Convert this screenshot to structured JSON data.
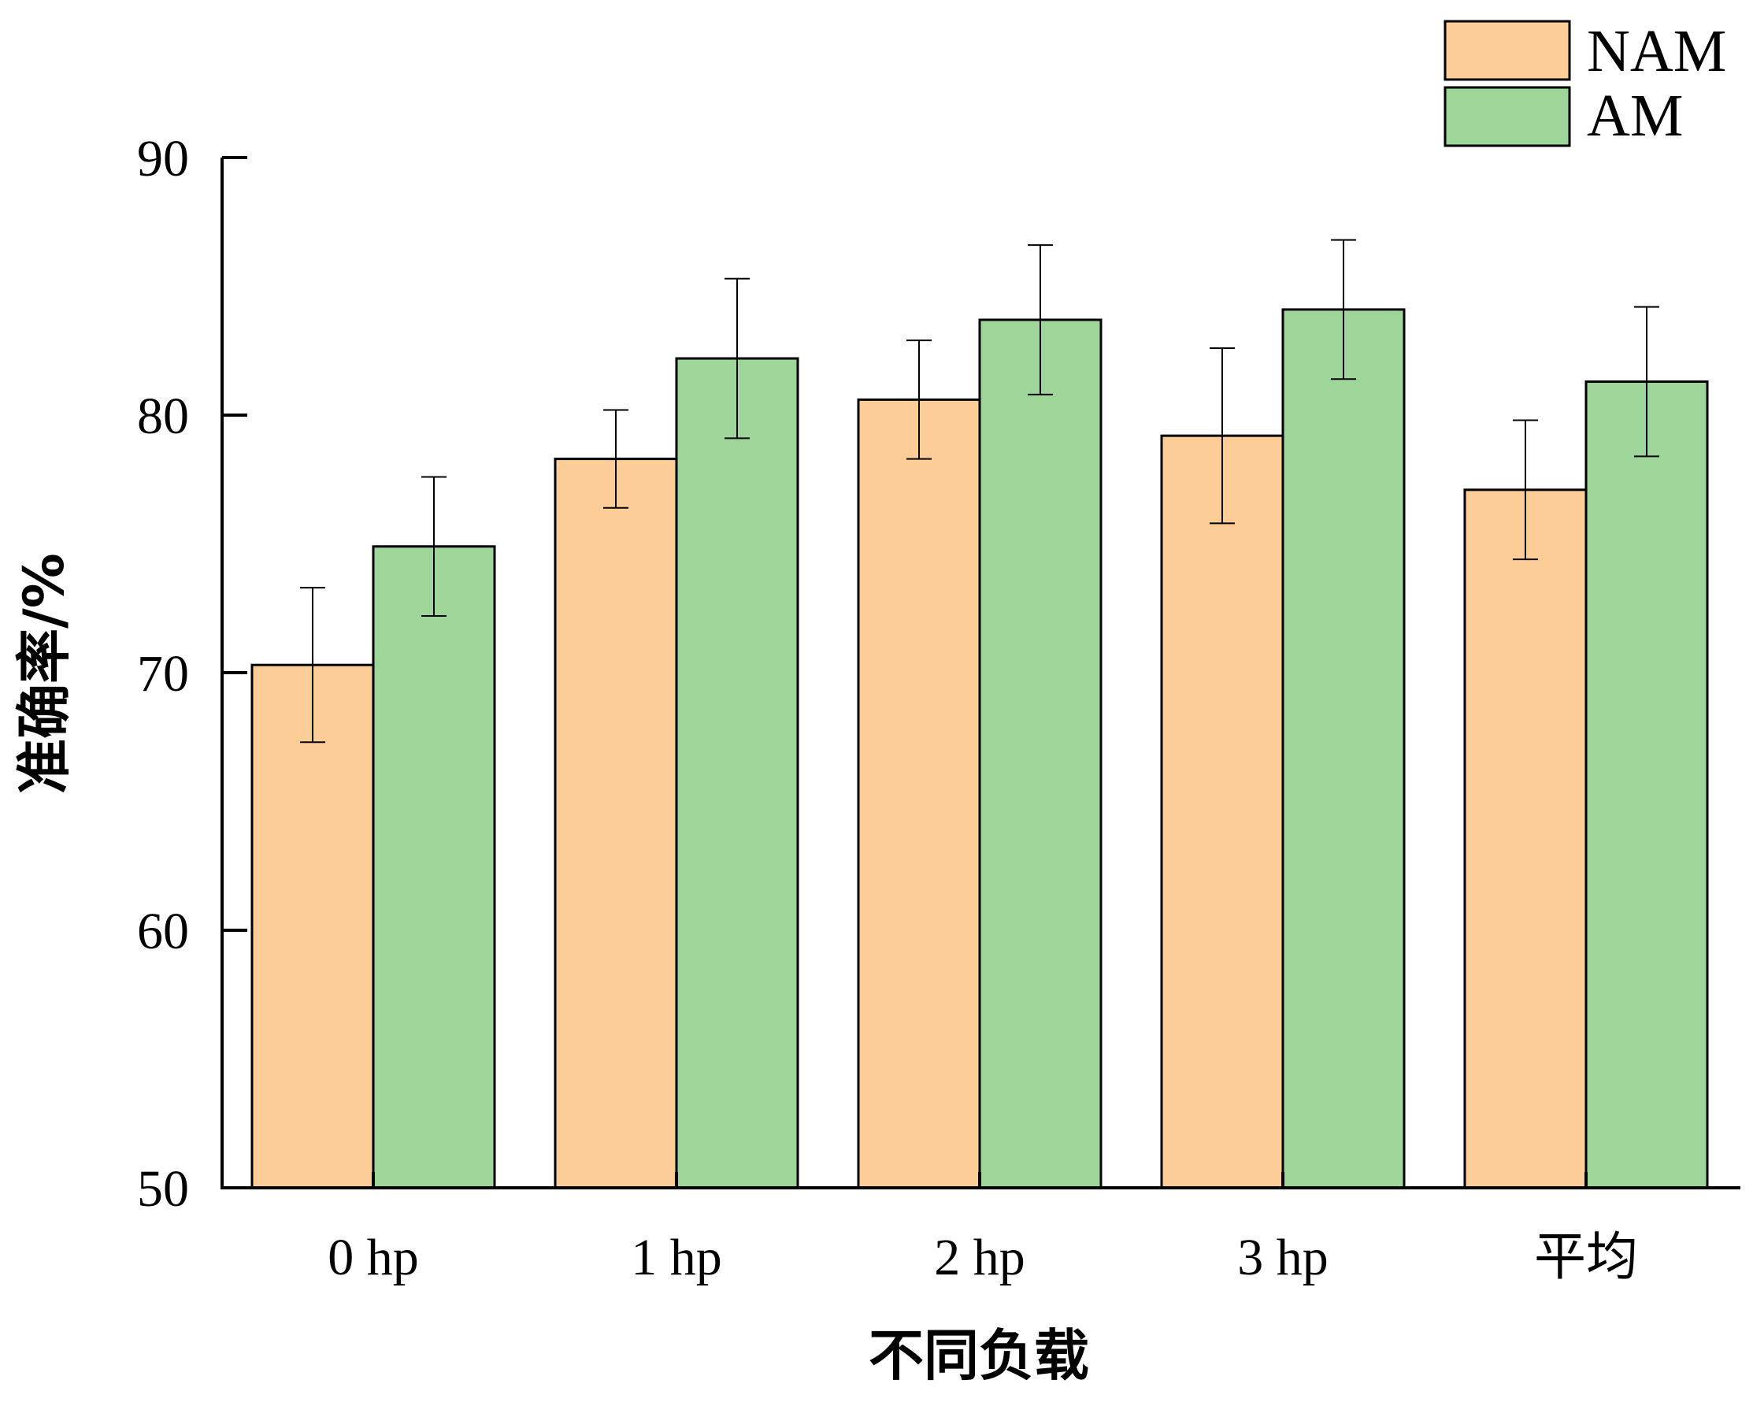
{
  "chart_data": {
    "type": "bar",
    "title": "",
    "xlabel": "不同负载",
    "ylabel": "准确率/%",
    "categories": [
      "0 hp",
      "1 hp",
      "2 hp",
      "3 hp",
      "平均"
    ],
    "series": [
      {
        "name": "NAM",
        "color": "#FDCD97",
        "values": [
          70.3,
          78.3,
          80.6,
          79.2,
          77.1
        ],
        "errors": [
          3.0,
          1.9,
          2.3,
          3.4,
          2.7
        ]
      },
      {
        "name": "AM",
        "color": "#9ED69A",
        "values": [
          74.9,
          82.2,
          83.7,
          84.1,
          81.3
        ],
        "errors": [
          2.7,
          3.1,
          2.9,
          2.7,
          2.9
        ]
      }
    ],
    "ylim": [
      50,
      90
    ],
    "yticks": [
      "50",
      "60",
      "70",
      "80",
      "90"
    ],
    "grid": false,
    "legend_position": "top-right"
  }
}
